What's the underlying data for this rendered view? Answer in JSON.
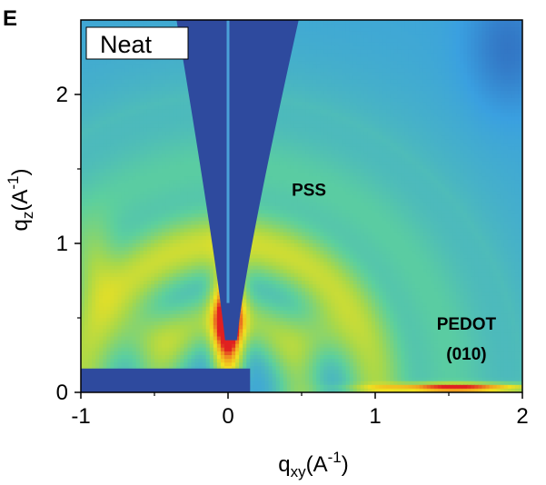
{
  "panel_label": "E",
  "chart_data": {
    "type": "heatmap",
    "title": "",
    "inset_label": "Neat",
    "xlabel": {
      "main": "q",
      "sub": "xy",
      "unit_open": "(A",
      "sup": "-1",
      "unit_close": ")"
    },
    "ylabel": {
      "main": "q",
      "sub": "z",
      "unit_open": "(A",
      "sup": "-1",
      "unit_close": ")"
    },
    "xlim": [
      -1,
      2
    ],
    "ylim": [
      0,
      2.5
    ],
    "xticks": [
      -1,
      0,
      1,
      2
    ],
    "xtick_labels": [
      "-1",
      "0",
      "1",
      "2"
    ],
    "yticks": [
      0,
      1,
      2
    ],
    "ytick_labels": [
      "0",
      "1",
      "2"
    ],
    "colormap": [
      "#2b4aa8",
      "#3aa0e0",
      "#5ccf9e",
      "#a8d84a",
      "#f0e020",
      "#f0a020",
      "#e02020"
    ],
    "annotations": [
      {
        "text": "PSS",
        "x": 0.55,
        "y": 1.32
      },
      {
        "text": "PEDOT",
        "x": 1.62,
        "y": 0.42
      },
      {
        "text": "(010)",
        "x": 1.62,
        "y": 0.22
      }
    ],
    "features": [
      {
        "name": "PSS ring",
        "q_center": 1.0,
        "q_width": 0.14,
        "intensity": 0.55
      },
      {
        "name": "inner ring",
        "q_center": 0.5,
        "q_width": 0.1,
        "intensity": 0.35
      },
      {
        "name": "specular peak",
        "qxy": 0.0,
        "qz": 0.55,
        "intensity": 1.0
      },
      {
        "name": "PEDOT (010)",
        "qxy": 1.6,
        "qz": 0.03,
        "intensity": 0.9
      }
    ],
    "grid": false
  }
}
